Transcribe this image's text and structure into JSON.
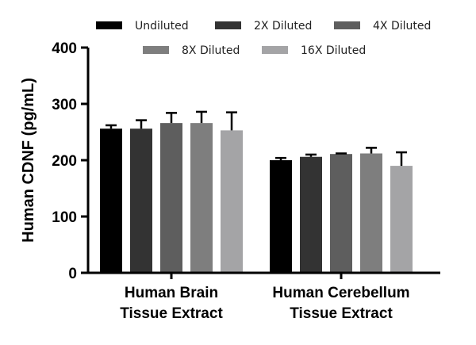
{
  "chart_data": {
    "type": "bar",
    "title": "",
    "xlabel": "",
    "ylabel": "Human CDNF (pg/mL)",
    "ylim": [
      0,
      400
    ],
    "yticks": [
      "0",
      "100",
      "200",
      "300",
      "400"
    ],
    "grid": false,
    "legend_position": "top",
    "categories": [
      [
        "Human Brain",
        "Tissue Extract"
      ],
      [
        "Human Cerebellum",
        "Tissue Extract"
      ]
    ],
    "series": [
      {
        "name": "Undiluted",
        "color": "#000000",
        "values": [
          256,
          200
        ],
        "errors": [
          6,
          4
        ]
      },
      {
        "name": "2X Diluted",
        "color": "#333333",
        "values": [
          256,
          206
        ],
        "errors": [
          15,
          4
        ]
      },
      {
        "name": "4X Diluted",
        "color": "#5e5e5e",
        "values": [
          266,
          211
        ],
        "errors": [
          18,
          1
        ]
      },
      {
        "name": "8X Diluted",
        "color": "#7e7e7e",
        "values": [
          266,
          212
        ],
        "errors": [
          20,
          10
        ]
      },
      {
        "name": "16X Diluted",
        "color": "#a4a4a6",
        "values": [
          253,
          190
        ],
        "errors": [
          32,
          24
        ]
      }
    ]
  }
}
